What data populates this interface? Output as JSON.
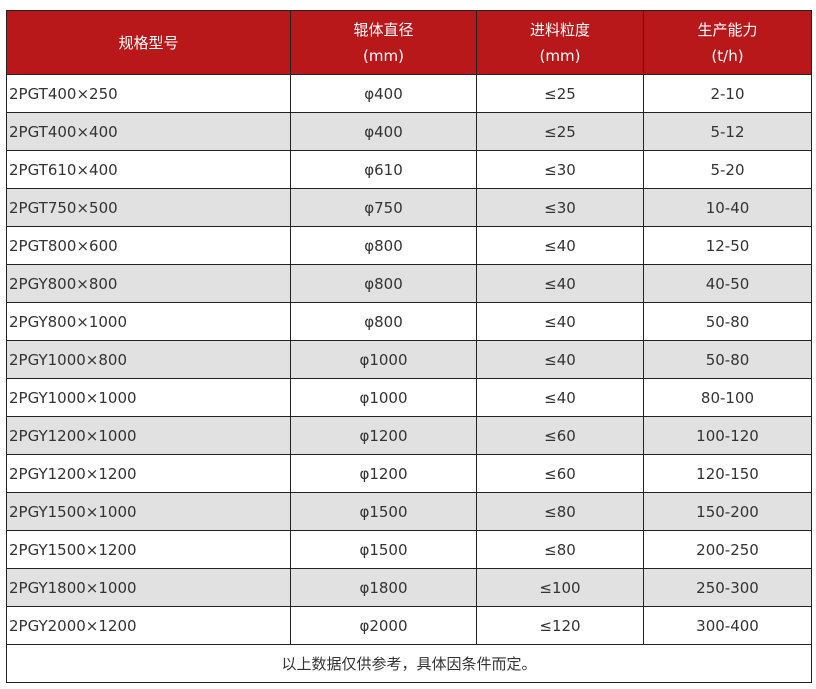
{
  "colors": {
    "header_bg": "#b8181a",
    "alt_row": "#e1e1e1"
  },
  "headers": [
    {
      "line1": "规格型号",
      "line2": ""
    },
    {
      "line1": "辊体直径",
      "line2": "(mm)"
    },
    {
      "line1": "进料粒度",
      "line2": "(mm)"
    },
    {
      "line1": "生产能力",
      "line2": "(t/h)"
    }
  ],
  "rows": [
    [
      "2PGT400×250",
      "φ400",
      "≤25",
      "2-10"
    ],
    [
      "2PGT400×400",
      "φ400",
      "≤25",
      "5-12"
    ],
    [
      "2PGT610×400",
      "φ610",
      "≤30",
      "5-20"
    ],
    [
      "2PGT750×500",
      "φ750",
      "≤30",
      "10-40"
    ],
    [
      "2PGT800×600",
      "φ800",
      "≤40",
      "12-50"
    ],
    [
      "2PGY800×800",
      "φ800",
      "≤40",
      "40-50"
    ],
    [
      "2PGY800×1000",
      "φ800",
      "≤40",
      "50-80"
    ],
    [
      "2PGY1000×800",
      "φ1000",
      "≤40",
      "50-80"
    ],
    [
      "2PGY1000×1000",
      "φ1000",
      "≤40",
      "80-100"
    ],
    [
      "2PGY1200×1000",
      "φ1200",
      "≤60",
      "100-120"
    ],
    [
      "2PGY1200×1200",
      "φ1200",
      "≤60",
      "120-150"
    ],
    [
      "2PGY1500×1000",
      "φ1500",
      "≤80",
      "150-200"
    ],
    [
      "2PGY1500×1200",
      "φ1500",
      "≤80",
      "200-250"
    ],
    [
      "2PGY1800×1000",
      "φ1800",
      "≤100",
      "250-300"
    ],
    [
      "2PGY2000×1200",
      "φ2000",
      "≤120",
      "300-400"
    ]
  ],
  "note": "以上数据仅供参考，具体因条件而定。"
}
